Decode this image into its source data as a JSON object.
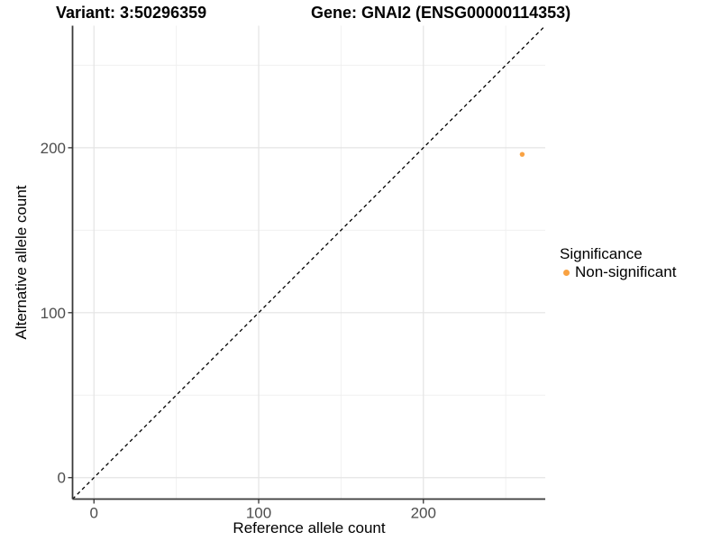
{
  "figure": {
    "background": "#FFFFFF"
  },
  "chart_data": {
    "type": "scatter",
    "titles": {
      "left": "Variant: 3:50296359",
      "right": "Gene: GNAI2 (ENSG00000114353)"
    },
    "xlabel": "Reference allele count",
    "ylabel": "Alternative allele count",
    "xlim": [
      -13,
      274
    ],
    "ylim": [
      -13,
      274
    ],
    "xticks": [
      0,
      100,
      200
    ],
    "yticks": [
      0,
      100,
      200
    ],
    "minor_xticks": [
      50,
      150,
      250
    ],
    "minor_yticks": [
      50,
      150,
      250
    ],
    "grid": "major+minor",
    "identity_line": {
      "style": "dashed",
      "equation": "y = x",
      "color": "#000000"
    },
    "series": [
      {
        "name": "Non-significant",
        "color": "#F9A242",
        "points": [
          {
            "x": 260,
            "y": 196
          }
        ]
      }
    ],
    "legend": {
      "title": "Significance",
      "position": "right",
      "entries": [
        {
          "label": "Non-significant",
          "color": "#F9A242"
        }
      ]
    },
    "style": {
      "major_grid_color": "#E4E4E4",
      "minor_grid_color": "#F0F0F0",
      "axis_line_color": "#3A3A3A",
      "tick_color": "#333333",
      "tick_label_color": "#4D4D4D"
    }
  }
}
